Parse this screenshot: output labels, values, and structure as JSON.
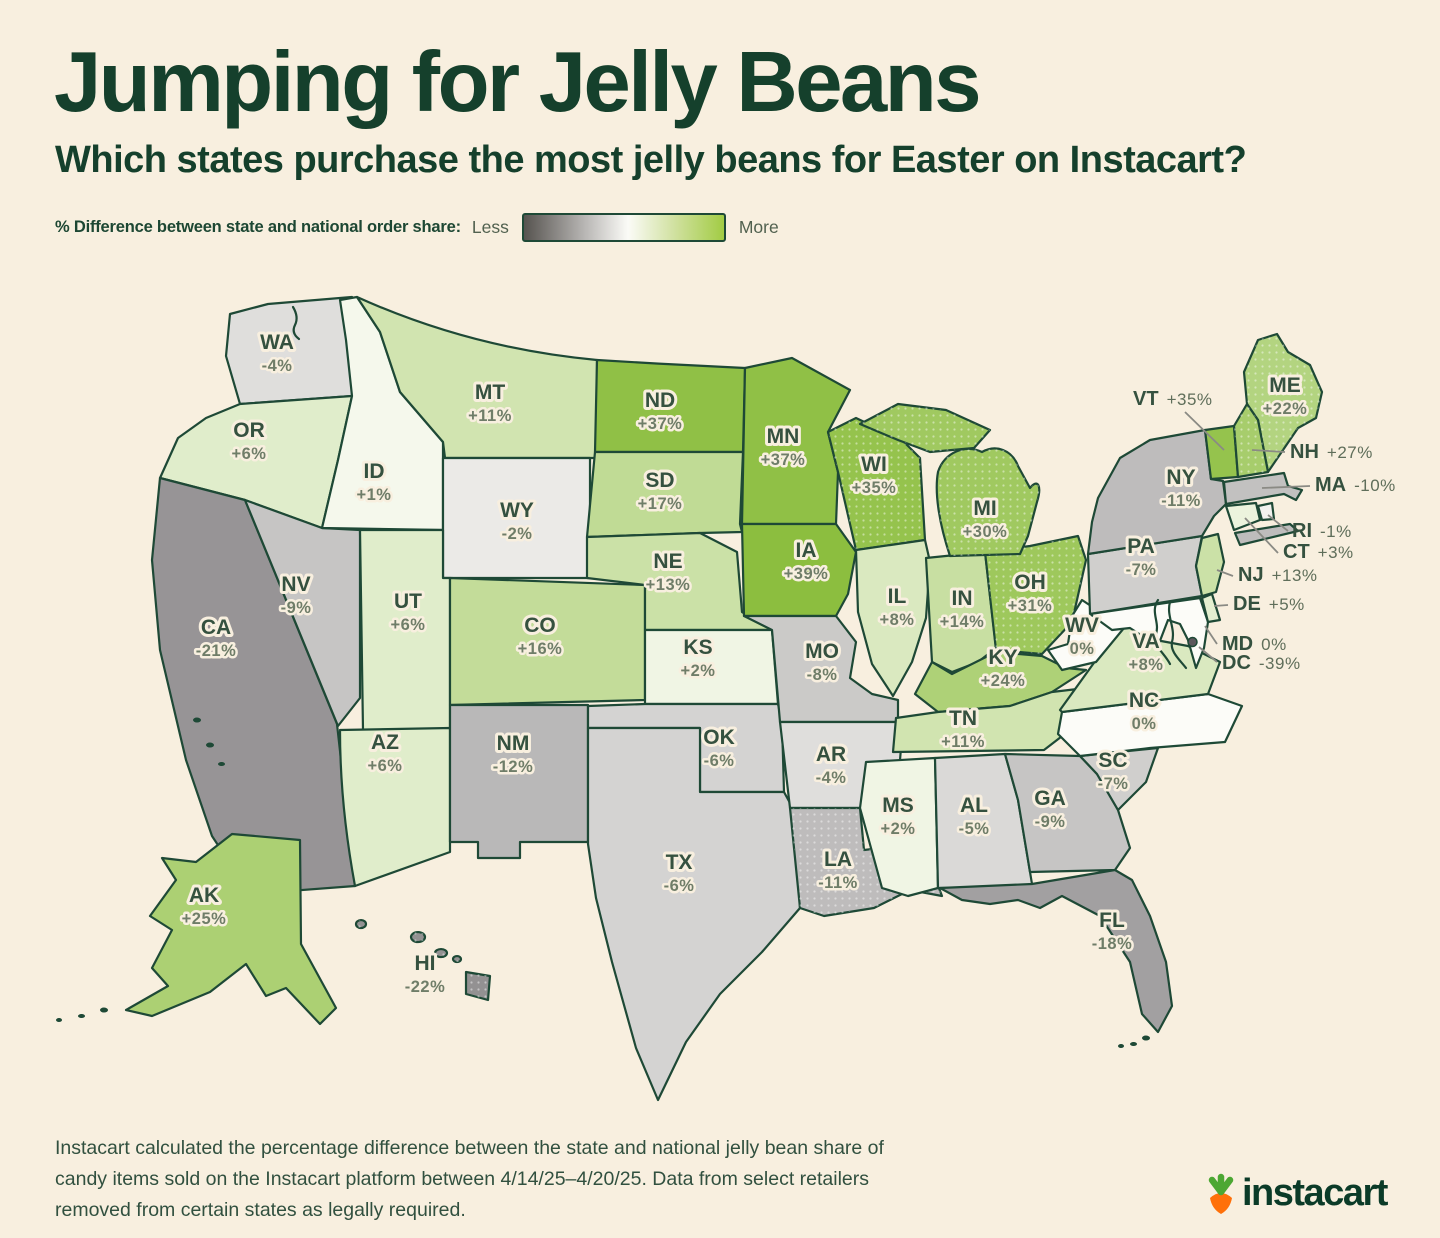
{
  "header": {
    "title": "Jumping for Jelly Beans",
    "subtitle": "Which states purchase the most jelly beans for Easter on Instacart?"
  },
  "legend": {
    "label": "% Difference between state and national order share:",
    "less": "Less",
    "more": "More",
    "gradient_stops": [
      "#56534f",
      "#b7b5b3",
      "#fbfbf7",
      "#cfe09d",
      "#a2cc44"
    ]
  },
  "chart_data": {
    "type": "heatmap",
    "title": "Jumping for Jelly Beans",
    "subtitle": "Which states purchase the most jelly beans for Easter on Instacart?",
    "metric": "% Difference between state and national order share",
    "legend": {
      "low_label": "Less",
      "high_label": "More"
    },
    "states": [
      {
        "abbr": "WA",
        "value": -4,
        "label": "-4%"
      },
      {
        "abbr": "OR",
        "value": 6,
        "label": "+6%"
      },
      {
        "abbr": "CA",
        "value": -21,
        "label": "-21%"
      },
      {
        "abbr": "NV",
        "value": -9,
        "label": "-9%"
      },
      {
        "abbr": "ID",
        "value": 1,
        "label": "+1%"
      },
      {
        "abbr": "MT",
        "value": 11,
        "label": "+11%"
      },
      {
        "abbr": "WY",
        "value": -2,
        "label": "-2%"
      },
      {
        "abbr": "UT",
        "value": 6,
        "label": "+6%"
      },
      {
        "abbr": "CO",
        "value": 16,
        "label": "+16%"
      },
      {
        "abbr": "AZ",
        "value": 6,
        "label": "+6%"
      },
      {
        "abbr": "NM",
        "value": -12,
        "label": "-12%"
      },
      {
        "abbr": "ND",
        "value": 37,
        "label": "+37%"
      },
      {
        "abbr": "SD",
        "value": 17,
        "label": "+17%"
      },
      {
        "abbr": "NE",
        "value": 13,
        "label": "+13%"
      },
      {
        "abbr": "KS",
        "value": 2,
        "label": "+2%"
      },
      {
        "abbr": "OK",
        "value": -6,
        "label": "-6%"
      },
      {
        "abbr": "TX",
        "value": -6,
        "label": "-6%"
      },
      {
        "abbr": "MN",
        "value": 37,
        "label": "+37%"
      },
      {
        "abbr": "IA",
        "value": 39,
        "label": "+39%"
      },
      {
        "abbr": "MO",
        "value": -8,
        "label": "-8%"
      },
      {
        "abbr": "AR",
        "value": -4,
        "label": "-4%"
      },
      {
        "abbr": "LA",
        "value": -11,
        "label": "-11%"
      },
      {
        "abbr": "WI",
        "value": 35,
        "label": "+35%"
      },
      {
        "abbr": "IL",
        "value": 8,
        "label": "+8%"
      },
      {
        "abbr": "IN",
        "value": 14,
        "label": "+14%"
      },
      {
        "abbr": "OH",
        "value": 31,
        "label": "+31%"
      },
      {
        "abbr": "MI",
        "value": 30,
        "label": "+30%"
      },
      {
        "abbr": "KY",
        "value": 24,
        "label": "+24%"
      },
      {
        "abbr": "TN",
        "value": 11,
        "label": "+11%"
      },
      {
        "abbr": "MS",
        "value": 2,
        "label": "+2%"
      },
      {
        "abbr": "AL",
        "value": -5,
        "label": "-5%"
      },
      {
        "abbr": "GA",
        "value": -9,
        "label": "-9%"
      },
      {
        "abbr": "SC",
        "value": -7,
        "label": "-7%"
      },
      {
        "abbr": "NC",
        "value": 0,
        "label": "0%"
      },
      {
        "abbr": "VA",
        "value": 8,
        "label": "+8%"
      },
      {
        "abbr": "WV",
        "value": 0,
        "label": "0%"
      },
      {
        "abbr": "FL",
        "value": -18,
        "label": "-18%"
      },
      {
        "abbr": "PA",
        "value": -7,
        "label": "-7%"
      },
      {
        "abbr": "NY",
        "value": -11,
        "label": "-11%"
      },
      {
        "abbr": "ME",
        "value": 22,
        "label": "+22%"
      },
      {
        "abbr": "VT",
        "value": 35,
        "label": "+35%",
        "callout": true
      },
      {
        "abbr": "NH",
        "value": 27,
        "label": "+27%",
        "callout": true
      },
      {
        "abbr": "MA",
        "value": -10,
        "label": "-10%",
        "callout": true
      },
      {
        "abbr": "RI",
        "value": -1,
        "label": "-1%",
        "callout": true
      },
      {
        "abbr": "CT",
        "value": 3,
        "label": "+3%",
        "callout": true
      },
      {
        "abbr": "NJ",
        "value": 13,
        "label": "+13%",
        "callout": true
      },
      {
        "abbr": "MD",
        "value": 0,
        "label": "0%",
        "callout": true
      },
      {
        "abbr": "DE",
        "value": 5,
        "label": "+5%",
        "callout": true
      },
      {
        "abbr": "DC",
        "value": -39,
        "label": "-39%",
        "callout": true
      },
      {
        "abbr": "AK",
        "value": 25,
        "label": "+25%"
      },
      {
        "abbr": "HI",
        "value": -22,
        "label": "-22%"
      }
    ],
    "colors": {
      "negative_end": "#5b575c",
      "neutral": "#fcfcf8",
      "positive_end": "#8cbe3f",
      "stroke": "#1e4936",
      "domain": 39
    }
  },
  "footer": {
    "lines": [
      "Instacart calculated the percentage difference between the state and national jelly bean share of",
      "candy items sold on the Instacart platform between 4/14/25–4/20/25. Data from select retailers",
      "removed from certain states as legally required."
    ]
  },
  "logo": {
    "text": "instacart",
    "carrot_orange": "#ff7009",
    "leaf_green": "#4ca733",
    "text_color": "#0b3b28"
  }
}
